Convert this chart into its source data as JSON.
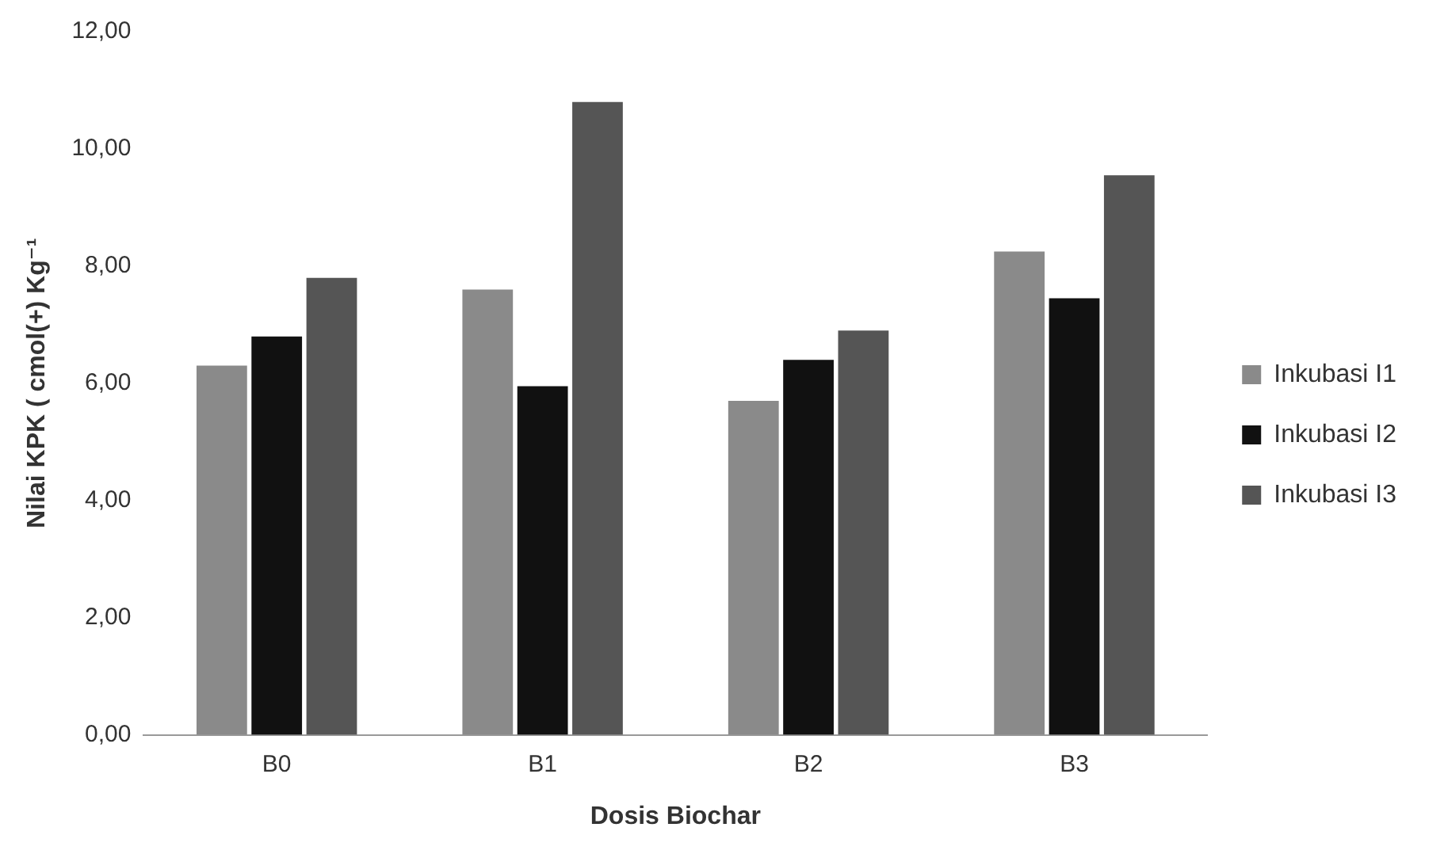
{
  "chart_data": {
    "type": "bar",
    "xlabel": "Dosis Biochar",
    "ylabel": "Nilai KPK ( cmol(+) Kg⁻¹",
    "categories": [
      "B0",
      "B1",
      "B2",
      "B3"
    ],
    "series": [
      {
        "name": "Inkubasi I1",
        "color": "#8a8a8a",
        "values": [
          6.3,
          7.6,
          5.7,
          8.25
        ]
      },
      {
        "name": "Inkubasi I2",
        "color": "#111111",
        "values": [
          6.8,
          5.95,
          6.4,
          7.45
        ]
      },
      {
        "name": "Inkubasi I3",
        "color": "#555555",
        "values": [
          7.8,
          10.8,
          6.9,
          9.55
        ]
      }
    ],
    "ylim": [
      0,
      12
    ],
    "yticks": [
      {
        "value": 0,
        "label": "0,00"
      },
      {
        "value": 2,
        "label": "2,00"
      },
      {
        "value": 4,
        "label": "4,00"
      },
      {
        "value": 6,
        "label": "6,00"
      },
      {
        "value": 8,
        "label": "8,00"
      },
      {
        "value": 10,
        "label": "10,00"
      },
      {
        "value": 12,
        "label": "12,00"
      }
    ],
    "grid": false,
    "legend": "right"
  }
}
